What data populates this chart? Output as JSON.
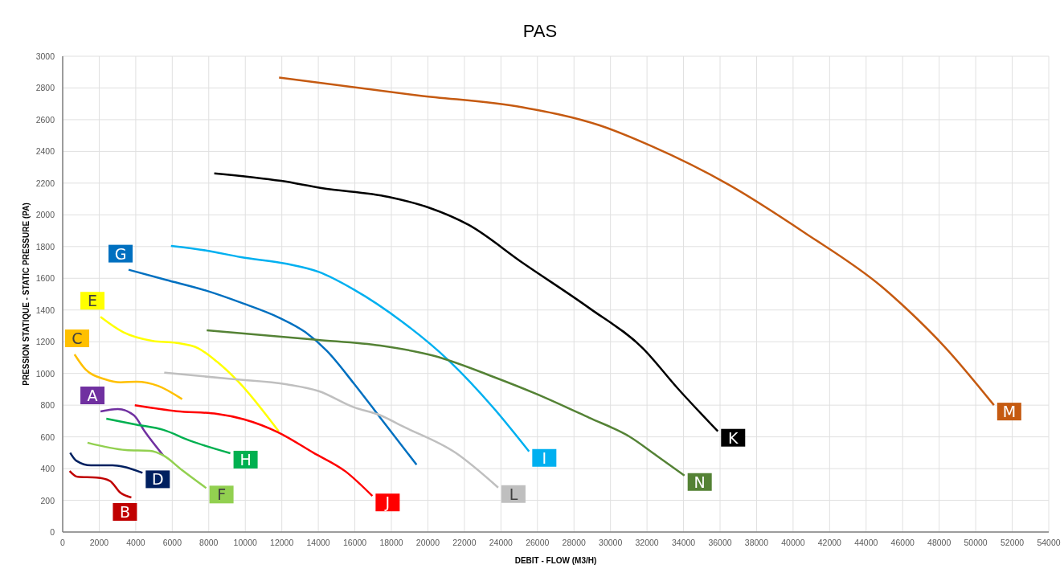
{
  "chart_data": {
    "type": "line",
    "title": "PAS",
    "xlabel": "DEBIT - FLOW (M3/H)",
    "ylabel": "PRESSION STATIQUE - STATIC PRESSURE (PA)",
    "xlim": [
      0,
      54000
    ],
    "ylim": [
      0,
      3000
    ],
    "xticks": [
      0,
      2000,
      4000,
      6000,
      8000,
      10000,
      12000,
      14000,
      16000,
      18000,
      20000,
      22000,
      24000,
      26000,
      28000,
      30000,
      32000,
      34000,
      36000,
      38000,
      40000,
      42000,
      44000,
      46000,
      48000,
      50000,
      52000,
      54000
    ],
    "yticks": [
      0,
      200,
      400,
      600,
      800,
      1000,
      1200,
      1400,
      1600,
      1800,
      2000,
      2200,
      2400,
      2600,
      2800,
      3000
    ],
    "grid": true,
    "marker": "none",
    "line_style": "solid",
    "series": [
      {
        "name": "A",
        "color": "#7030a0",
        "x": [
          2070,
          3020,
          3900,
          4490,
          5510
        ],
        "values": [
          760,
          775,
          736,
          635,
          483
        ]
      },
      {
        "name": "B",
        "color": "#c00000",
        "x": [
          380,
          820,
          1850,
          2580,
          3170,
          3760
        ],
        "values": [
          385,
          348,
          343,
          323,
          247,
          218
        ]
      },
      {
        "name": "C",
        "color": "#ffc000",
        "x": [
          650,
          1260,
          2290,
          3170,
          4050,
          5220,
          6540
        ],
        "values": [
          1120,
          1024,
          964,
          944,
          948,
          922,
          838
        ]
      },
      {
        "name": "D",
        "color": "#002060",
        "x": [
          410,
          750,
          1550,
          2730,
          3320,
          4370
        ],
        "values": [
          500,
          449,
          420,
          420,
          412,
          373
        ]
      },
      {
        "name": "E",
        "color": "#ffff00",
        "x": [
          2070,
          3320,
          4930,
          6250,
          7420,
          8450,
          9620,
          11830
        ],
        "values": [
          1357,
          1260,
          1205,
          1192,
          1159,
          1074,
          948,
          635
        ]
      },
      {
        "name": "F",
        "color": "#92d050",
        "x": [
          1360,
          3460,
          4780,
          5510,
          6540,
          7860
        ],
        "values": [
          563,
          517,
          512,
          483,
          390,
          277
        ]
      },
      {
        "name": "G",
        "color": "#0070c0",
        "x": [
          3610,
          5660,
          7860,
          9770,
          11830,
          13290,
          14470,
          15930,
          17400,
          19380
        ],
        "values": [
          1654,
          1590,
          1522,
          1446,
          1353,
          1260,
          1142,
          939,
          720,
          424
        ]
      },
      {
        "name": "H",
        "color": "#00b050",
        "x": [
          2390,
          4050,
          5510,
          6980,
          9180
        ],
        "values": [
          715,
          677,
          644,
          576,
          497
        ]
      },
      {
        "name": "I",
        "color": "#00b0f0",
        "x": [
          5930,
          7860,
          9770,
          12270,
          14030,
          15930,
          18570,
          21210,
          23560,
          25540
        ],
        "values": [
          1804,
          1775,
          1733,
          1691,
          1640,
          1530,
          1328,
          1074,
          787,
          508
        ]
      },
      {
        "name": "J",
        "color": "#ff0000",
        "x": [
          3950,
          6250,
          8450,
          9920,
          11830,
          13730,
          15490,
          16960
        ],
        "values": [
          799,
          762,
          745,
          711,
          627,
          500,
          382,
          227
        ]
      },
      {
        "name": "K",
        "color": "#000000",
        "x": [
          8300,
          11970,
          14170,
          17840,
          20040,
          22240,
          25170,
          28840,
          31770,
          33680,
          35880
        ],
        "values": [
          2262,
          2214,
          2169,
          2113,
          2046,
          1936,
          1699,
          1412,
          1159,
          906,
          635
        ]
      },
      {
        "name": "L",
        "color": "#bfbfbf",
        "x": [
          5560,
          9330,
          12270,
          14030,
          15930,
          17400,
          18570,
          21510,
          23850
        ],
        "values": [
          1005,
          964,
          931,
          888,
          787,
          736,
          669,
          500,
          280
        ]
      },
      {
        "name": "M",
        "color": "#c55a11",
        "x": [
          11850,
          19540,
          25180,
          29410,
          32230,
          36460,
          40690,
          44910,
          46320,
          48290,
          51000
        ],
        "values": [
          2866,
          2752,
          2678,
          2564,
          2434,
          2191,
          1883,
          1542,
          1396,
          1169,
          800
        ]
      },
      {
        "name": "N",
        "color": "#548235",
        "x": [
          7890,
          13880,
          17400,
          20330,
          23710,
          25910,
          28840,
          31040,
          32510,
          34050
        ],
        "values": [
          1272,
          1213,
          1176,
          1111,
          973,
          872,
          720,
          602,
          483,
          356
        ]
      }
    ]
  }
}
